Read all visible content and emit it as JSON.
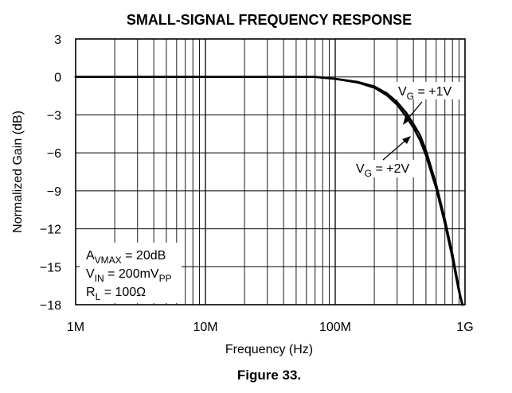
{
  "chart_data": {
    "type": "line",
    "title": "SMALL-SIGNAL FREQUENCY RESPONSE",
    "caption": "Figure 33.",
    "xlabel": "Frequency (Hz)",
    "ylabel": "Normalized Gain (dB)",
    "xscale": "log",
    "xlim": [
      1000000,
      1000000000
    ],
    "ylim": [
      -18,
      3
    ],
    "grid": true,
    "xticks": [
      {
        "value": 1000000,
        "label": "1M"
      },
      {
        "value": 10000000,
        "label": "10M"
      },
      {
        "value": 100000000,
        "label": "100M"
      },
      {
        "value": 1000000000,
        "label": "1G"
      }
    ],
    "yticks": [
      {
        "value": 3,
        "label": "3"
      },
      {
        "value": 0,
        "label": "0"
      },
      {
        "value": -3,
        "label": "−3"
      },
      {
        "value": -6,
        "label": "−6"
      },
      {
        "value": -9,
        "label": "−9"
      },
      {
        "value": -12,
        "label": "−12"
      },
      {
        "value": -15,
        "label": "−15"
      },
      {
        "value": -18,
        "label": "−18"
      }
    ],
    "series": [
      {
        "name": "VG = +1V",
        "x": [
          1000000,
          10000000,
          50000000,
          70000000,
          100000000,
          150000000,
          200000000,
          250000000,
          300000000,
          350000000,
          400000000,
          450000000,
          500000000,
          600000000,
          700000000,
          800000000,
          900000000,
          950000000
        ],
        "y": [
          0,
          0,
          0,
          0,
          -0.15,
          -0.4,
          -0.75,
          -1.3,
          -2.0,
          -2.8,
          -3.7,
          -4.6,
          -5.8,
          -8.5,
          -11.3,
          -14.0,
          -16.8,
          -18
        ]
      },
      {
        "name": "VG = +2V",
        "x": [
          1000000,
          10000000,
          50000000,
          70000000,
          100000000,
          150000000,
          200000000,
          250000000,
          300000000,
          350000000,
          400000000,
          450000000,
          500000000,
          600000000,
          700000000,
          800000000,
          900000000,
          960000000
        ],
        "y": [
          0,
          0,
          0,
          0,
          -0.15,
          -0.45,
          -0.85,
          -1.45,
          -2.2,
          -3.1,
          -4.0,
          -5.0,
          -6.2,
          -8.8,
          -11.6,
          -14.3,
          -17.0,
          -18
        ]
      }
    ],
    "annotations": {
      "vg1": {
        "main": "V",
        "sub": "G",
        "rest": " = +1V"
      },
      "vg2": {
        "main": "V",
        "sub": "G",
        "rest": " = +2V"
      },
      "conditions": [
        {
          "main": "A",
          "sub": "VMAX",
          "rest": " = 20dB",
          "sub2": "",
          "rest2": ""
        },
        {
          "main": "V",
          "sub": "IN",
          "rest": " = 200mV",
          "sub2": "PP",
          "rest2": ""
        },
        {
          "main": "R",
          "sub": "L",
          "rest": " = 100Ω",
          "sub2": "",
          "rest2": ""
        }
      ]
    }
  }
}
